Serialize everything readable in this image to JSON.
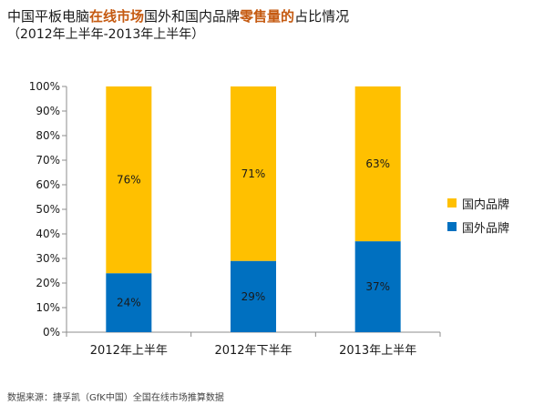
{
  "title": {
    "part1": "中国平板电脑",
    "part2": "在线市场",
    "part3": "国外和国内品牌",
    "part4": "零售量的",
    "part5": "占比情况",
    "subtitle": "（2012年上半年-2013年上半年）"
  },
  "source": "数据来源：捷孚凯（GfK中国）全国在线市场推算数据",
  "colors": {
    "domestic": "#FFC000",
    "foreign": "#0070C0",
    "highlight": "#C55A11"
  },
  "chart_data": {
    "type": "bar",
    "stacked": true,
    "percent": true,
    "categories": [
      "2012年上半年",
      "2012年下半年",
      "2013年上半年"
    ],
    "series": [
      {
        "name": "国外品牌",
        "values": [
          24,
          29,
          37
        ],
        "labels": [
          "24%",
          "29%",
          "37%"
        ]
      },
      {
        "name": "国内品牌",
        "values": [
          76,
          71,
          63
        ],
        "labels": [
          "76%",
          "71%",
          "63%"
        ]
      }
    ],
    "ylim": [
      0,
      100
    ],
    "yticks": [
      "0%",
      "10%",
      "20%",
      "30%",
      "40%",
      "50%",
      "60%",
      "70%",
      "80%",
      "90%",
      "100%"
    ],
    "legend_position": "right",
    "grid": false
  },
  "legend": [
    {
      "label": "国内品牌"
    },
    {
      "label": "国外品牌"
    }
  ]
}
